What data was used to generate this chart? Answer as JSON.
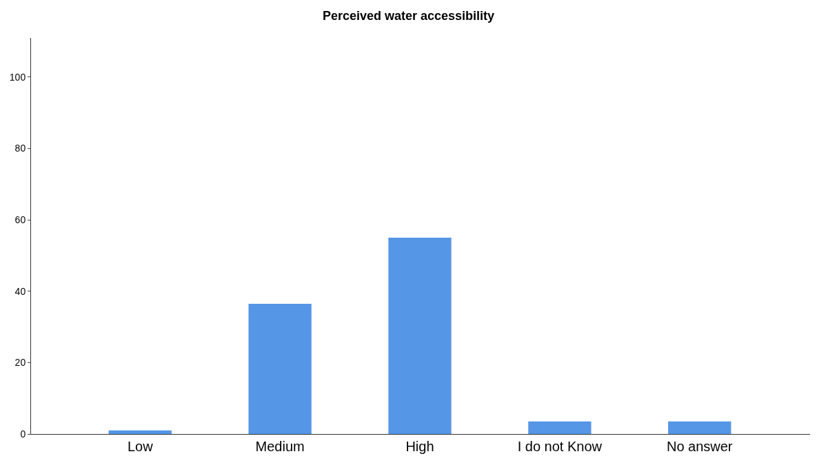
{
  "chart_data": {
    "type": "bar",
    "title": "Perceived water accessibility",
    "categories": [
      "Low",
      "Medium",
      "High",
      "I do not Know",
      "No answer"
    ],
    "values": [
      1,
      36.5,
      55,
      3.5,
      3.5
    ],
    "color": "#5596e6",
    "ylim": [
      0,
      111
    ],
    "yticks": [
      0,
      20,
      40,
      60,
      80,
      100
    ]
  }
}
